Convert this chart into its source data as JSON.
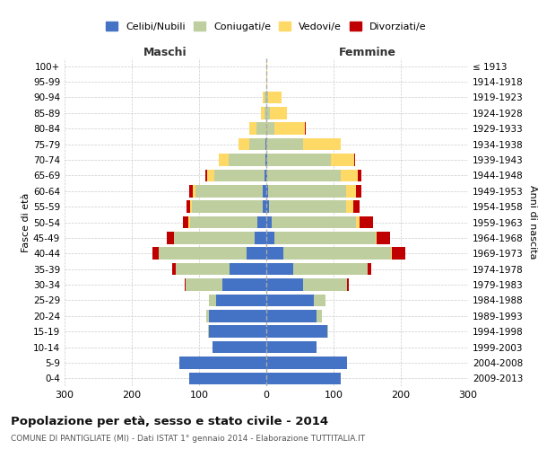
{
  "age_groups": [
    "0-4",
    "5-9",
    "10-14",
    "15-19",
    "20-24",
    "25-29",
    "30-34",
    "35-39",
    "40-44",
    "45-49",
    "50-54",
    "55-59",
    "60-64",
    "65-69",
    "70-74",
    "75-79",
    "80-84",
    "85-89",
    "90-94",
    "95-99",
    "100+"
  ],
  "birth_years": [
    "2009-2013",
    "2004-2008",
    "1999-2003",
    "1994-1998",
    "1989-1993",
    "1984-1988",
    "1979-1983",
    "1974-1978",
    "1969-1973",
    "1964-1968",
    "1959-1963",
    "1954-1958",
    "1949-1953",
    "1944-1948",
    "1939-1943",
    "1934-1938",
    "1929-1933",
    "1924-1928",
    "1919-1923",
    "1914-1918",
    "≤ 1913"
  ],
  "colors": {
    "celibi": "#4472C4",
    "coniugati": "#BFCE9E",
    "vedovi": "#FFD966",
    "divorziati": "#C00000"
  },
  "males": {
    "celibi": [
      115,
      130,
      80,
      85,
      85,
      75,
      65,
      55,
      30,
      17,
      14,
      6,
      5,
      3,
      1,
      1,
      0,
      0,
      0,
      0,
      0
    ],
    "coniugati": [
      0,
      0,
      0,
      2,
      5,
      10,
      55,
      80,
      130,
      120,
      100,
      105,
      100,
      75,
      55,
      25,
      15,
      3,
      3,
      0,
      0
    ],
    "vedovi": [
      0,
      0,
      0,
      0,
      0,
      0,
      0,
      0,
      0,
      1,
      2,
      3,
      5,
      10,
      15,
      15,
      10,
      5,
      3,
      0,
      0
    ],
    "divorziati": [
      0,
      0,
      0,
      0,
      0,
      0,
      2,
      5,
      10,
      10,
      8,
      5,
      5,
      3,
      0,
      0,
      0,
      0,
      0,
      0,
      0
    ]
  },
  "females": {
    "celibi": [
      110,
      120,
      75,
      90,
      75,
      70,
      55,
      40,
      25,
      12,
      8,
      4,
      3,
      1,
      1,
      0,
      0,
      0,
      0,
      0,
      0
    ],
    "coniugati": [
      0,
      0,
      0,
      2,
      8,
      18,
      65,
      110,
      160,
      150,
      125,
      115,
      115,
      110,
      95,
      55,
      12,
      5,
      2,
      0,
      0
    ],
    "vedovi": [
      0,
      0,
      0,
      0,
      0,
      0,
      0,
      1,
      1,
      2,
      5,
      10,
      15,
      25,
      35,
      55,
      45,
      25,
      20,
      1,
      1
    ],
    "divorziati": [
      0,
      0,
      0,
      0,
      0,
      0,
      3,
      5,
      20,
      20,
      20,
      10,
      8,
      5,
      1,
      1,
      1,
      0,
      0,
      0,
      0
    ]
  },
  "xlim": 300,
  "title": "Popolazione per età, sesso e stato civile - 2014",
  "subtitle": "COMUNE DI PANTIGLIATE (MI) - Dati ISTAT 1° gennaio 2014 - Elaborazione TUTTITALIA.IT",
  "ylabel_left": "Fasce di età",
  "ylabel_right": "Anni di nascita",
  "legend_labels": [
    "Celibi/Nubili",
    "Coniugati/e",
    "Vedovi/e",
    "Divorziati/e"
  ]
}
